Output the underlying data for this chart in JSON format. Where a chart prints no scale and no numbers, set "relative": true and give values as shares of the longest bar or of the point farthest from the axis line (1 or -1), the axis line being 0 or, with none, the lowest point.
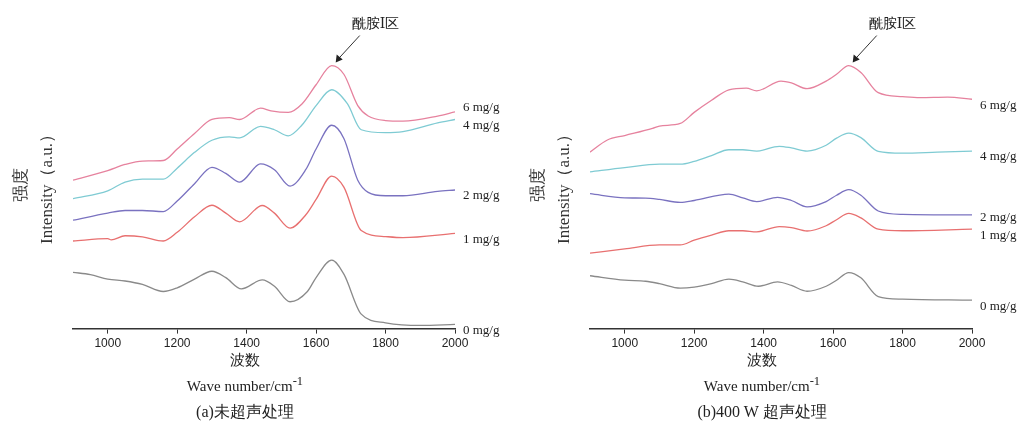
{
  "chart_data": [
    {
      "type": "line",
      "relative": true,
      "xlabel": "波数\nWave number/cm$^{-1}$",
      "ylabel": "强度\nIntensity（a.u.）",
      "xlim": [
        900,
        2000
      ],
      "xticks": [
        1000,
        1200,
        1400,
        1600,
        1800,
        2000
      ],
      "grid": false,
      "legend": false,
      "marker": "none",
      "line_style": "solid",
      "tick_labels": "x",
      "annotations": [
        "(a)未超声处理",
        {
          "text": "酰胺Ⅰ区",
          "x": 1645,
          "y": 1.0
        }
      ],
      "series": [
        {
          "name": "6 mg/g",
          "color": "#e6829e",
          "x": [
            900,
            1000,
            1050,
            1100,
            1160,
            1200,
            1250,
            1300,
            1350,
            1380,
            1440,
            1470,
            1520,
            1560,
            1600,
            1645,
            1680,
            1720,
            1750,
            1800,
            1850,
            1950,
            2000
          ],
          "values": [
            0.564,
            0.601,
            0.624,
            0.637,
            0.639,
            0.683,
            0.742,
            0.795,
            0.802,
            0.795,
            0.838,
            0.828,
            0.822,
            0.855,
            0.927,
            1.0,
            0.967,
            0.848,
            0.808,
            0.791,
            0.789,
            0.808,
            0.824
          ]
        },
        {
          "name": "4 mg/g",
          "color": "#7fcbd3",
          "x": [
            900,
            1000,
            1050,
            1100,
            1160,
            1200,
            1250,
            1300,
            1350,
            1380,
            1440,
            1480,
            1520,
            1560,
            1600,
            1645,
            1690,
            1730,
            1800,
            1850,
            1950,
            2000
          ],
          "values": [
            0.494,
            0.524,
            0.557,
            0.568,
            0.568,
            0.61,
            0.67,
            0.716,
            0.729,
            0.725,
            0.769,
            0.756,
            0.733,
            0.775,
            0.848,
            0.908,
            0.855,
            0.756,
            0.745,
            0.749,
            0.782,
            0.795
          ]
        },
        {
          "name": "2 mg/g",
          "color": "#7a72c0",
          "x": [
            900,
            1000,
            1050,
            1100,
            1160,
            1200,
            1250,
            1300,
            1340,
            1380,
            1440,
            1480,
            1525,
            1570,
            1600,
            1645,
            1680,
            1720,
            1750,
            1800,
            1850,
            1950,
            2000
          ],
          "values": [
            0.412,
            0.439,
            0.449,
            0.449,
            0.445,
            0.485,
            0.551,
            0.613,
            0.59,
            0.557,
            0.626,
            0.604,
            0.542,
            0.604,
            0.683,
            0.773,
            0.723,
            0.564,
            0.518,
            0.505,
            0.505,
            0.522,
            0.527
          ]
        },
        {
          "name": "1 mg/g",
          "color": "#e87070",
          "x": [
            900,
            1000,
            1010,
            1050,
            1100,
            1160,
            1200,
            1250,
            1300,
            1340,
            1380,
            1445,
            1480,
            1525,
            1570,
            1600,
            1645,
            1680,
            1730,
            1800,
            1850,
            2000
          ],
          "values": [
            0.333,
            0.342,
            0.337,
            0.353,
            0.349,
            0.333,
            0.366,
            0.425,
            0.469,
            0.439,
            0.406,
            0.468,
            0.439,
            0.382,
            0.432,
            0.491,
            0.58,
            0.538,
            0.373,
            0.35,
            0.346,
            0.362
          ]
        },
        {
          "name": "0 mg/g",
          "color": "#8a8a8a",
          "x": [
            900,
            950,
            1000,
            1050,
            1100,
            1160,
            1200,
            1250,
            1300,
            1340,
            1385,
            1445,
            1480,
            1525,
            1575,
            1600,
            1645,
            1680,
            1730,
            1800,
            1900,
            2000
          ],
          "values": [
            0.214,
            0.205,
            0.188,
            0.181,
            0.168,
            0.141,
            0.155,
            0.188,
            0.218,
            0.194,
            0.151,
            0.185,
            0.161,
            0.102,
            0.141,
            0.194,
            0.26,
            0.207,
            0.055,
            0.022,
            0.012,
            0.016
          ]
        }
      ]
    },
    {
      "type": "line",
      "relative": true,
      "xlabel": "波数\nWave number/cm$^{-1}$",
      "ylabel": "强度\nIntensity（a.u.）",
      "xlim": [
        900,
        2000
      ],
      "xticks": [
        1000,
        1200,
        1400,
        1600,
        1800,
        2000
      ],
      "grid": false,
      "legend": false,
      "marker": "none",
      "line_style": "solid",
      "tick_labels": "x",
      "annotations": [
        "(b)400 W 超声处理",
        {
          "text": "酰胺Ⅰ区",
          "x": 1645,
          "y": 1.0
        }
      ],
      "series": [
        {
          "name": "6 mg/g",
          "color": "#e6829e",
          "x": [
            900,
            950,
            1000,
            1080,
            1100,
            1160,
            1200,
            1250,
            1300,
            1350,
            1380,
            1450,
            1480,
            1525,
            1580,
            1610,
            1645,
            1680,
            1730,
            1800,
            1850,
            1930,
            2000
          ],
          "values": [
            0.671,
            0.717,
            0.734,
            0.761,
            0.77,
            0.78,
            0.822,
            0.868,
            0.908,
            0.914,
            0.904,
            0.941,
            0.934,
            0.912,
            0.941,
            0.967,
            1.0,
            0.974,
            0.897,
            0.882,
            0.878,
            0.88,
            0.872
          ]
        },
        {
          "name": "4 mg/g",
          "color": "#7fcbd3",
          "x": [
            900,
            1000,
            1100,
            1160,
            1200,
            1250,
            1300,
            1340,
            1380,
            1445,
            1480,
            1525,
            1580,
            1610,
            1645,
            1680,
            1730,
            1800,
            1900,
            2000
          ],
          "values": [
            0.596,
            0.612,
            0.625,
            0.625,
            0.636,
            0.658,
            0.68,
            0.68,
            0.675,
            0.693,
            0.687,
            0.675,
            0.697,
            0.724,
            0.743,
            0.726,
            0.674,
            0.667,
            0.671,
            0.675
          ]
        },
        {
          "name": "2 mg/g",
          "color": "#7a72c0",
          "x": [
            900,
            1000,
            1060,
            1100,
            1160,
            1200,
            1300,
            1340,
            1380,
            1440,
            1480,
            1525,
            1580,
            1610,
            1645,
            1680,
            1730,
            1800,
            2000
          ],
          "values": [
            0.513,
            0.497,
            0.496,
            0.491,
            0.48,
            0.487,
            0.511,
            0.497,
            0.483,
            0.499,
            0.487,
            0.463,
            0.483,
            0.507,
            0.528,
            0.507,
            0.447,
            0.434,
            0.432
          ]
        },
        {
          "name": "1 mg/g",
          "color": "#e87070",
          "x": [
            900,
            1000,
            1100,
            1160,
            1200,
            1250,
            1300,
            1340,
            1380,
            1445,
            1480,
            1525,
            1580,
            1610,
            1645,
            1680,
            1730,
            1800,
            2000
          ],
          "values": [
            0.287,
            0.303,
            0.318,
            0.318,
            0.336,
            0.355,
            0.372,
            0.372,
            0.368,
            0.388,
            0.384,
            0.371,
            0.391,
            0.414,
            0.438,
            0.421,
            0.378,
            0.372,
            0.378
          ]
        },
        {
          "name": "0 mg/g",
          "color": "#8a8a8a",
          "x": [
            900,
            1000,
            1060,
            1100,
            1160,
            1200,
            1250,
            1300,
            1340,
            1385,
            1440,
            1480,
            1525,
            1580,
            1610,
            1645,
            1680,
            1730,
            1800,
            2000
          ],
          "values": [
            0.201,
            0.184,
            0.18,
            0.171,
            0.154,
            0.158,
            0.171,
            0.188,
            0.178,
            0.161,
            0.178,
            0.164,
            0.142,
            0.161,
            0.184,
            0.213,
            0.193,
            0.122,
            0.112,
            0.108
          ]
        }
      ]
    }
  ]
}
